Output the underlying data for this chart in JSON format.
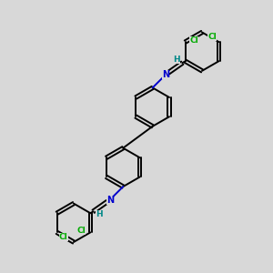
{
  "bg_color": "#d8d8d8",
  "bond_color": "#000000",
  "N_color": "#0000cc",
  "Cl_color": "#00aa00",
  "H_color": "#008888",
  "line_width": 1.4,
  "fig_size": [
    3.0,
    3.0
  ],
  "dpi": 100,
  "xlim": [
    0,
    10
  ],
  "ylim": [
    0,
    10
  ]
}
